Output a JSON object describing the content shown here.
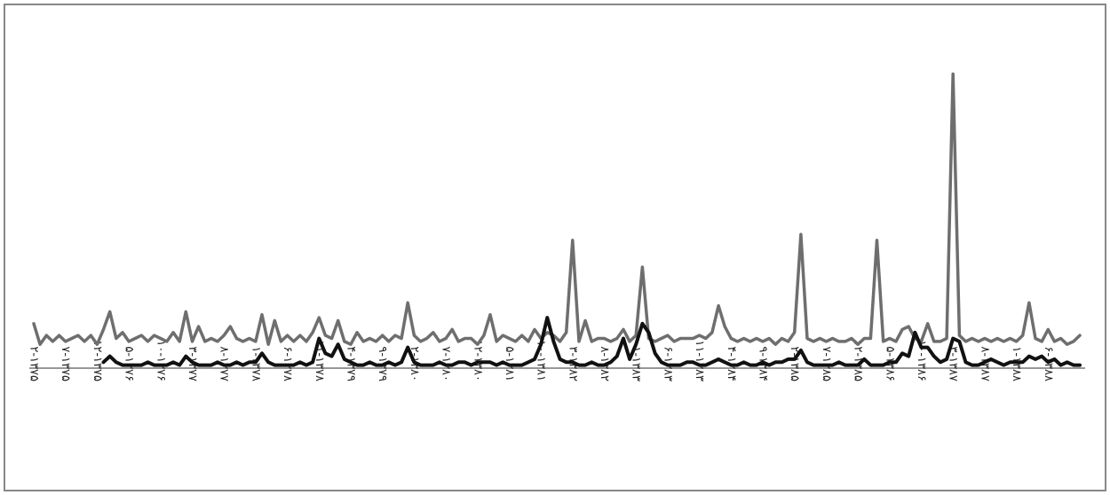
{
  "chart_data": {
    "type": "line",
    "categories": [
      "۲-۱۳۷۵",
      null,
      null,
      null,
      null,
      "۷-۱۳۷۵",
      null,
      null,
      null,
      null,
      "۱۲-۱۳۷۵",
      null,
      null,
      null,
      null,
      "۵-۱۳۷۶",
      null,
      null,
      null,
      null,
      "۱۰-۱۳۷۶",
      null,
      null,
      null,
      null,
      "۳-۱۳۷۷",
      null,
      null,
      null,
      null,
      "۸-۱۳۷۷",
      null,
      null,
      null,
      null,
      "۱-۱۳۷۸",
      null,
      null,
      null,
      null,
      "۶-۱۳۷۸",
      null,
      null,
      null,
      null,
      "۱۱-۱۳۷۸",
      null,
      null,
      null,
      null,
      "۴-۱۳۷۹",
      null,
      null,
      null,
      null,
      "۹-۱۳۷۹",
      null,
      null,
      null,
      null,
      "۲-۱۳۸۰",
      null,
      null,
      null,
      null,
      "۷-۱۳۸۰",
      null,
      null,
      null,
      null,
      "۱۲-۱۳۸۰",
      null,
      null,
      null,
      null,
      "۵-۱۳۸۱",
      null,
      null,
      null,
      null,
      "۱۰-۱۳۸۱",
      null,
      null,
      null,
      null,
      "۳-۱۳۸۲",
      null,
      null,
      null,
      null,
      "۸-۱۳۸۲",
      null,
      null,
      null,
      null,
      "۱-۱۳۸۳",
      null,
      null,
      null,
      null,
      "۶-۱۳۸۳",
      null,
      null,
      null,
      null,
      "۱۱-۱۳۸۳",
      null,
      null,
      null,
      null,
      "۴-۱۳۸۴",
      null,
      null,
      null,
      null,
      "۹-۱۳۸۴",
      null,
      null,
      null,
      null,
      "۲-۱۳۸۵",
      null,
      null,
      null,
      null,
      "۷-۱۳۸۵",
      null,
      null,
      null,
      null,
      "۱۲-۱۳۸۵",
      null,
      null,
      null,
      null,
      "۵-۱۳۸۶",
      null,
      null,
      null,
      null,
      "۱۰-۱۳۸۶",
      null,
      null,
      null,
      null,
      "۳-۱۳۸۷",
      null,
      null,
      null,
      null,
      "۸-۱۳۸۷",
      null,
      null,
      null,
      null,
      "۱-۱۳۸۸",
      null,
      null,
      null,
      null,
      "۶-۱۳۸۸",
      null,
      null,
      null,
      null,
      null
    ],
    "series": [
      {
        "color": "#6e6e6e",
        "values": [
          15,
          8,
          11,
          9,
          11,
          9,
          10,
          11,
          9,
          11,
          8,
          13,
          19,
          10,
          12,
          9,
          10,
          11,
          9,
          11,
          10,
          9,
          12,
          9,
          19,
          9,
          14,
          9,
          10,
          9,
          11,
          14,
          10,
          9,
          10,
          9,
          18,
          8,
          16,
          9,
          11,
          9,
          11,
          9,
          12,
          17,
          11,
          10,
          16,
          9,
          8,
          12,
          9,
          10,
          9,
          11,
          9,
          11,
          10,
          22,
          11,
          9,
          10,
          12,
          9,
          10,
          13,
          9,
          10,
          10,
          8,
          11,
          18,
          9,
          11,
          10,
          9,
          11,
          9,
          13,
          10,
          12,
          11,
          9,
          12,
          43,
          9,
          16,
          9,
          10,
          10,
          9,
          10,
          13,
          9,
          11,
          34,
          10,
          9,
          10,
          11,
          9,
          10,
          10,
          10,
          11,
          10,
          12,
          21,
          14,
          10,
          9,
          10,
          9,
          10,
          9,
          10,
          8,
          10,
          9,
          12,
          45,
          10,
          9,
          10,
          9,
          10,
          9,
          9,
          10,
          8,
          10,
          10,
          43,
          9,
          10,
          9,
          13,
          14,
          10,
          9,
          15,
          9,
          9,
          10,
          99,
          11,
          9,
          10,
          9,
          10,
          9,
          10,
          9,
          10,
          9,
          11,
          22,
          10,
          9,
          13,
          9,
          10,
          8,
          9,
          11
        ]
      },
      {
        "color": "#111111",
        "values": [
          null,
          null,
          null,
          null,
          null,
          null,
          null,
          null,
          null,
          null,
          null,
          2,
          4,
          2,
          1,
          1,
          1,
          1,
          2,
          1,
          1,
          1,
          2,
          1,
          4,
          2,
          1,
          1,
          1,
          2,
          1,
          1,
          2,
          1,
          2,
          2,
          5,
          2,
          1,
          1,
          1,
          1,
          2,
          1,
          2,
          10,
          5,
          4,
          8,
          3,
          2,
          1,
          1,
          2,
          1,
          1,
          2,
          1,
          2,
          7,
          2,
          1,
          1,
          1,
          2,
          1,
          1,
          2,
          2,
          1,
          2,
          2,
          2,
          1,
          2,
          1,
          1,
          1,
          2,
          3,
          8,
          17,
          9,
          3,
          2,
          2,
          1,
          1,
          2,
          1,
          1,
          2,
          4,
          10,
          3,
          8,
          15,
          12,
          5,
          2,
          1,
          1,
          1,
          2,
          2,
          1,
          1,
          2,
          3,
          2,
          1,
          1,
          2,
          1,
          1,
          2,
          1,
          2,
          2,
          3,
          3,
          6,
          2,
          1,
          1,
          1,
          1,
          2,
          1,
          1,
          1,
          3,
          1,
          1,
          1,
          2,
          2,
          5,
          4,
          12,
          7,
          7,
          4,
          2,
          3,
          10,
          9,
          2,
          1,
          1,
          2,
          3,
          2,
          1,
          2,
          2,
          2,
          4,
          3,
          4,
          2,
          3,
          1,
          2,
          1,
          1
        ]
      }
    ],
    "ylim": [
      0,
      100
    ]
  }
}
